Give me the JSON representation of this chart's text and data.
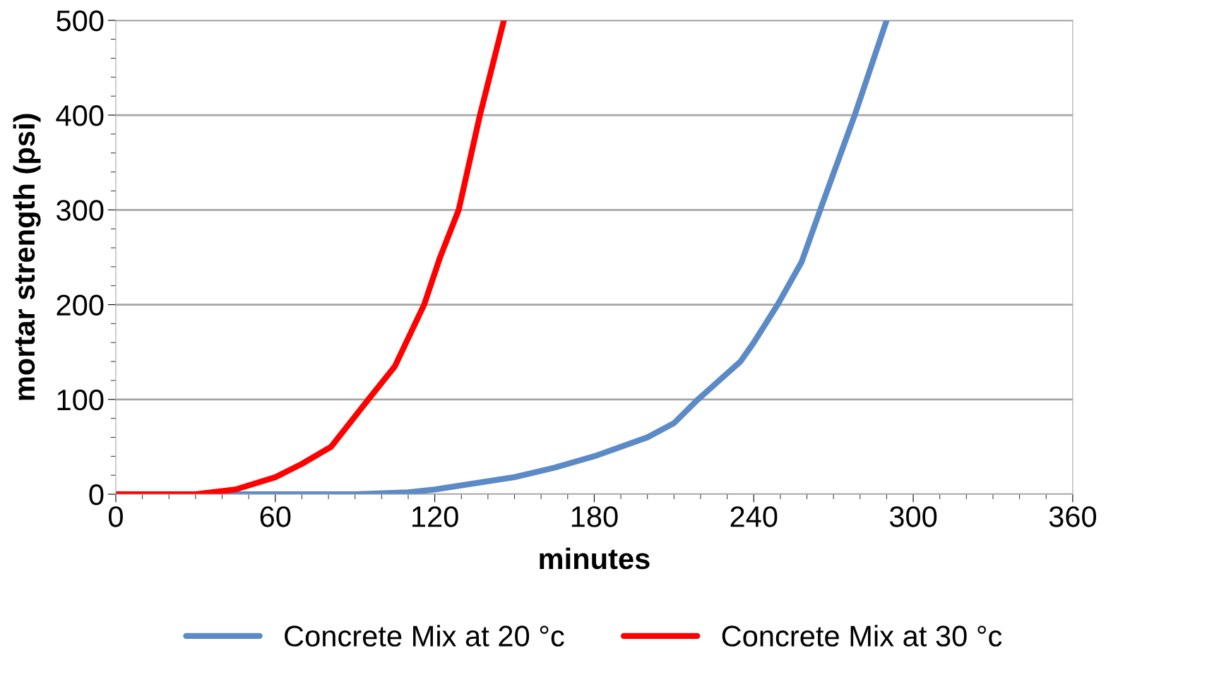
{
  "chart_data": {
    "type": "line",
    "xlabel": "minutes",
    "ylabel": "mortar strength (psi)",
    "xlim": [
      0,
      360
    ],
    "xticks": [
      0,
      60,
      120,
      180,
      240,
      300,
      360
    ],
    "ylim": [
      0,
      500
    ],
    "yticks": [
      0,
      100,
      200,
      300,
      400,
      500
    ],
    "grid": "y",
    "legend": "bottom",
    "marker": "none",
    "line_style": "solid",
    "series": [
      {
        "name": "Concrete Mix at 20 °c",
        "color": "#5b8ac6",
        "x": [
          0,
          90,
          110,
          120,
          150,
          165,
          180,
          200,
          210,
          219,
          235,
          240,
          249,
          258,
          265,
          278,
          290
        ],
        "values": [
          0,
          0,
          2,
          5,
          18,
          28,
          40,
          60,
          75,
          100,
          140,
          160,
          200,
          245,
          300,
          400,
          500
        ]
      },
      {
        "name": "Concrete Mix at 30 °c",
        "color": "#ff0000",
        "x": [
          0,
          30,
          45,
          60,
          70,
          81,
          95,
          105,
          116,
          122,
          129,
          137,
          146
        ],
        "values": [
          0,
          0,
          5,
          18,
          32,
          50,
          100,
          135,
          200,
          250,
          300,
          400,
          500
        ]
      }
    ]
  }
}
